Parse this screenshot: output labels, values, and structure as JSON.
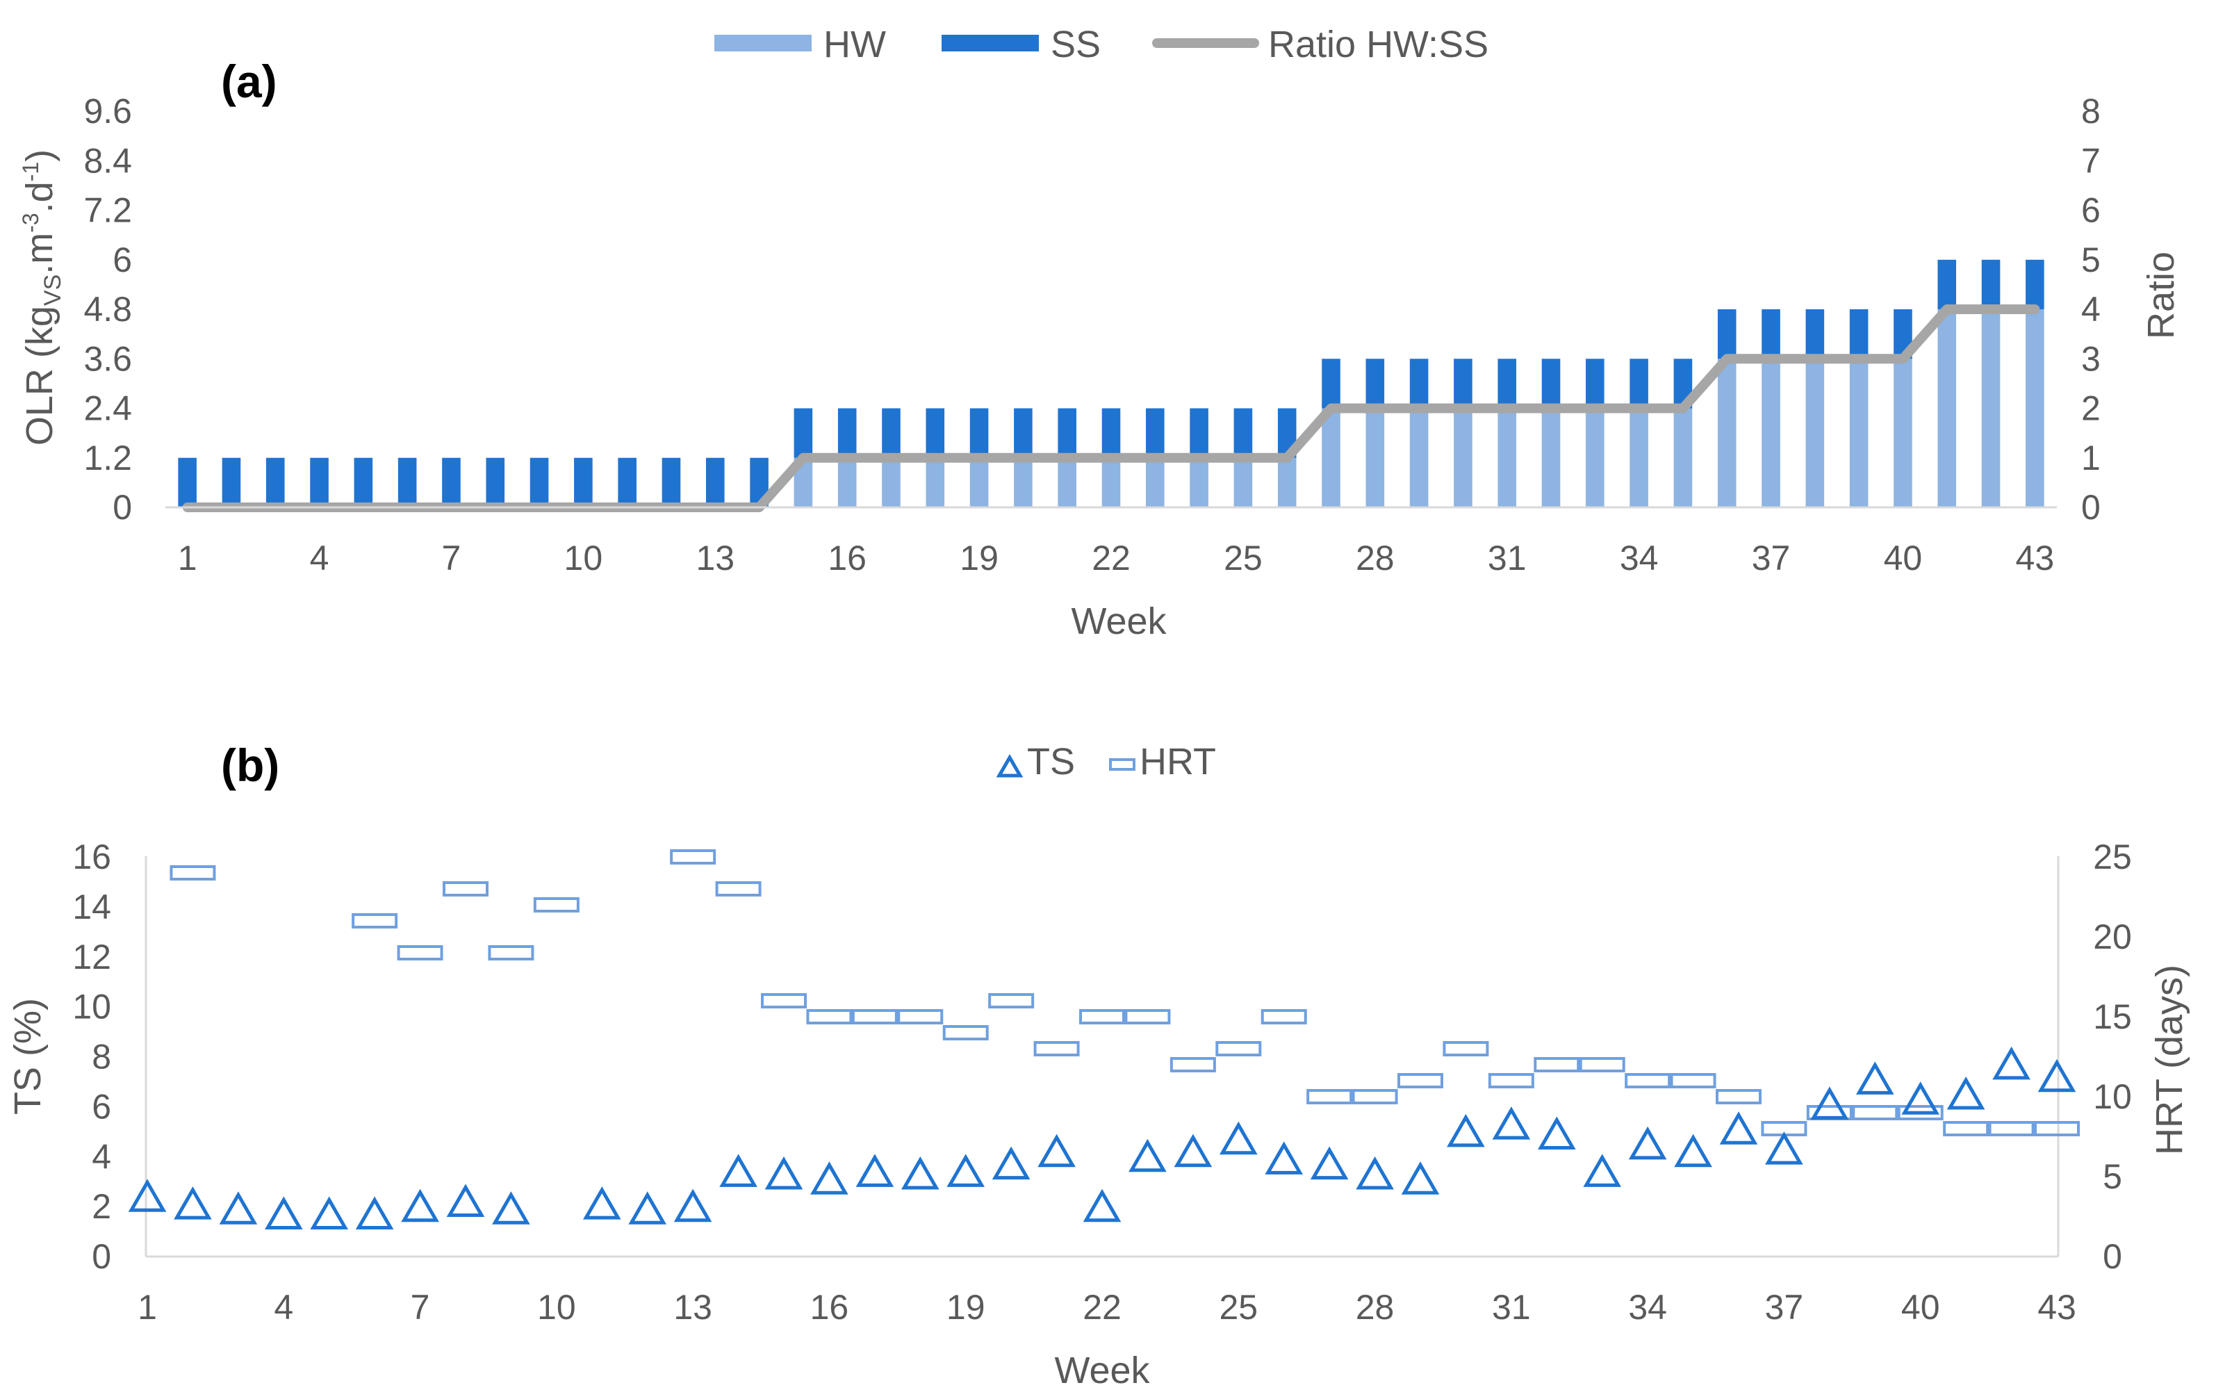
{
  "chart_data": [
    {
      "panel": "(a)",
      "type": "bar",
      "stacked": true,
      "xlabel": "Week",
      "ylabel_left": {
        "main": "OLR (kg",
        "sub": "VS",
        "mid": ".m",
        "sup1": "-3",
        "dot": ".d",
        "sup2": "-1",
        "end": ")"
      },
      "ylabel_right": "Ratio",
      "legend": [
        "HW",
        "SS",
        "Ratio HW:SS"
      ],
      "colors": {
        "HW": "#8db4e2",
        "SS": "#1f74d1",
        "ratio": "#a6a6a6"
      },
      "left_ylim": [
        0,
        9.6
      ],
      "left_ticks": [
        "0",
        "1.2",
        "2.4",
        "3.6",
        "4.8",
        "6",
        "7.2",
        "8.4",
        "9.6"
      ],
      "right_ylim": [
        0,
        8
      ],
      "right_ticks": [
        "0",
        "1",
        "2",
        "3",
        "4",
        "5",
        "6",
        "7",
        "8"
      ],
      "x_ticks": [
        "1",
        "4",
        "7",
        "10",
        "13",
        "16",
        "19",
        "22",
        "25",
        "28",
        "31",
        "34",
        "37",
        "40",
        "43"
      ],
      "weeks": [
        1,
        2,
        3,
        4,
        5,
        6,
        7,
        8,
        9,
        10,
        11,
        12,
        13,
        14,
        15,
        16,
        17,
        18,
        19,
        20,
        21,
        22,
        23,
        24,
        25,
        26,
        27,
        28,
        29,
        30,
        31,
        32,
        33,
        34,
        35,
        36,
        37,
        38,
        39,
        40,
        41,
        42,
        43
      ],
      "series": [
        {
          "name": "HW",
          "values": [
            0,
            0,
            0,
            0,
            0,
            0,
            0,
            0,
            0,
            0,
            0,
            0,
            0,
            0,
            1.2,
            1.2,
            1.2,
            1.2,
            1.2,
            1.2,
            1.2,
            1.2,
            1.2,
            1.2,
            1.2,
            1.2,
            2.4,
            2.4,
            2.4,
            2.4,
            2.4,
            2.4,
            2.4,
            2.4,
            2.4,
            3.6,
            3.6,
            3.6,
            3.6,
            3.6,
            4.8,
            4.8,
            4.8
          ]
        },
        {
          "name": "SS",
          "values": [
            1.2,
            1.2,
            1.2,
            1.2,
            1.2,
            1.2,
            1.2,
            1.2,
            1.2,
            1.2,
            1.2,
            1.2,
            1.2,
            1.2,
            1.2,
            1.2,
            1.2,
            1.2,
            1.2,
            1.2,
            1.2,
            1.2,
            1.2,
            1.2,
            1.2,
            1.2,
            1.2,
            1.2,
            1.2,
            1.2,
            1.2,
            1.2,
            1.2,
            1.2,
            1.2,
            1.2,
            1.2,
            1.2,
            1.2,
            1.2,
            1.2,
            1.2,
            1.2
          ]
        },
        {
          "name": "Ratio HW:SS",
          "axis": "right",
          "values": [
            0,
            0,
            0,
            0,
            0,
            0,
            0,
            0,
            0,
            0,
            0,
            0,
            0,
            0,
            1,
            1,
            1,
            1,
            1,
            1,
            1,
            1,
            1,
            1,
            1,
            1,
            2,
            2,
            2,
            2,
            2,
            2,
            2,
            2,
            2,
            3,
            3,
            3,
            3,
            3,
            4,
            4,
            4
          ]
        }
      ]
    },
    {
      "panel": "(b)",
      "type": "scatter",
      "xlabel": "Week",
      "ylabel_left": "TS (%)",
      "ylabel_right": "HRT (days)",
      "legend": [
        "TS",
        "HRT"
      ],
      "colors": {
        "TS": "#1f74d1",
        "HRT": "#6fa0e0"
      },
      "left_ylim": [
        0,
        16
      ],
      "left_ticks": [
        "0",
        "2",
        "4",
        "6",
        "8",
        "10",
        "12",
        "14",
        "16"
      ],
      "right_ylim": [
        0,
        25
      ],
      "right_ticks": [
        "0",
        "5",
        "10",
        "15",
        "20",
        "25"
      ],
      "x_ticks": [
        "1",
        "4",
        "7",
        "10",
        "13",
        "16",
        "19",
        "22",
        "25",
        "28",
        "31",
        "34",
        "37",
        "40",
        "43"
      ],
      "series": [
        {
          "name": "TS",
          "axis": "left",
          "x": [
            1,
            2,
            3,
            4,
            5,
            6,
            7,
            8,
            9,
            11,
            12,
            13,
            14,
            15,
            16,
            17,
            18,
            19,
            20,
            21,
            22,
            23,
            24,
            25,
            26,
            27,
            28,
            29,
            30,
            31,
            32,
            33,
            34,
            35,
            36,
            37,
            38,
            39,
            40,
            41,
            42,
            43
          ],
          "values": [
            2.3,
            2.0,
            1.8,
            1.6,
            1.6,
            1.6,
            1.9,
            2.1,
            1.8,
            2.0,
            1.8,
            1.9,
            3.3,
            3.2,
            3.0,
            3.3,
            3.2,
            3.3,
            3.6,
            4.1,
            1.9,
            3.9,
            4.1,
            4.6,
            3.8,
            3.6,
            3.2,
            3.0,
            4.9,
            5.2,
            4.8,
            3.3,
            4.4,
            4.1,
            5.0,
            4.2,
            6.0,
            7.0,
            6.2,
            6.4,
            7.6,
            7.1
          ]
        },
        {
          "name": "HRT",
          "axis": "right",
          "x": [
            2,
            6,
            7,
            8,
            9,
            10,
            13,
            14,
            15,
            16,
            17,
            18,
            19,
            20,
            21,
            22,
            23,
            24,
            25,
            26,
            27,
            28,
            29,
            30,
            31,
            32,
            33,
            34,
            35,
            36,
            37,
            38,
            39,
            40,
            41,
            42,
            43
          ],
          "values": [
            24,
            21,
            19,
            23,
            19,
            22,
            25,
            23,
            16,
            15,
            15,
            15,
            14,
            16,
            13,
            15,
            15,
            12,
            13,
            15,
            10,
            10,
            11,
            13,
            11,
            12,
            12,
            11,
            11,
            10,
            8,
            9,
            9,
            9,
            8,
            8,
            8
          ]
        }
      ]
    }
  ]
}
